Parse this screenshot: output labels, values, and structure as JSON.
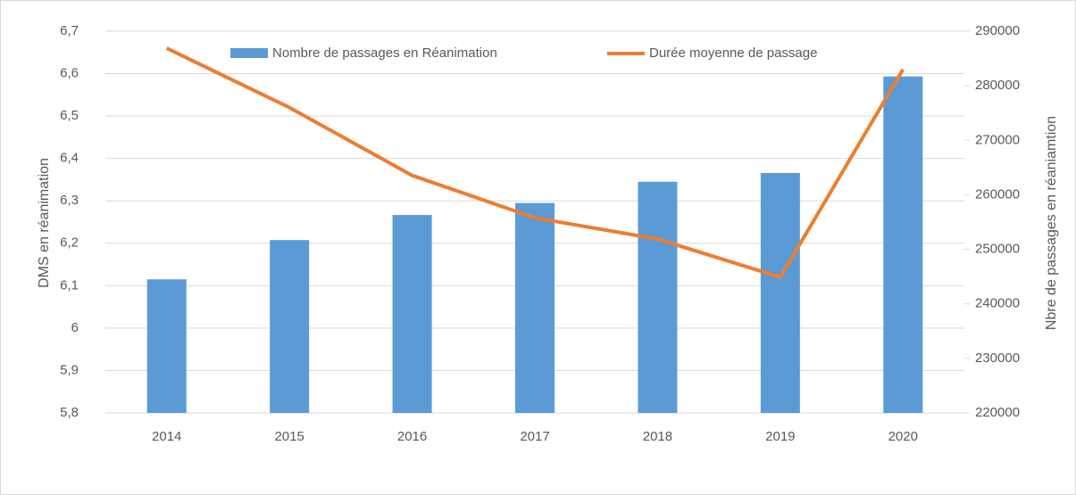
{
  "chart_data": {
    "type": "bar-line",
    "categories": [
      "2014",
      "2015",
      "2016",
      "2017",
      "2018",
      "2019",
      "2020"
    ],
    "series": [
      {
        "name": "Nombre de passages en Réanimation",
        "type": "bar",
        "axis": "y2",
        "color": "#5b9bd5",
        "values": [
          244500,
          251700,
          256300,
          258500,
          262400,
          264000,
          281700
        ]
      },
      {
        "name": "Durée moyenne de passage",
        "type": "line",
        "color": "#ed7d31",
        "values": [
          6.66,
          6.52,
          6.36,
          6.26,
          6.21,
          6.12,
          6.61
        ]
      }
    ],
    "ylabel": "DMS en réanimation",
    "y2label": "Nbre de passages en réaniamtion",
    "ylim": [
      5.8,
      6.7
    ],
    "yticks": [
      {
        "value": 5.8,
        "label": "5,8"
      },
      {
        "value": 5.9,
        "label": "5,9"
      },
      6,
      {
        "value": 6.1,
        "label": "6,1"
      },
      {
        "value": 6.2,
        "label": "6,2"
      },
      {
        "value": 6.3,
        "label": "6,3"
      },
      {
        "value": 6.4,
        "label": "6,4"
      },
      {
        "value": 6.5,
        "label": "6,5"
      },
      {
        "value": 6.6,
        "label": "6,6"
      },
      {
        "value": 6.7,
        "label": "6,7"
      }
    ],
    "y2lim": [
      220000,
      290000
    ],
    "y2ticks": [
      220000,
      230000,
      240000,
      250000,
      260000,
      270000,
      280000,
      290000
    ],
    "grid": true,
    "legend": "top"
  }
}
